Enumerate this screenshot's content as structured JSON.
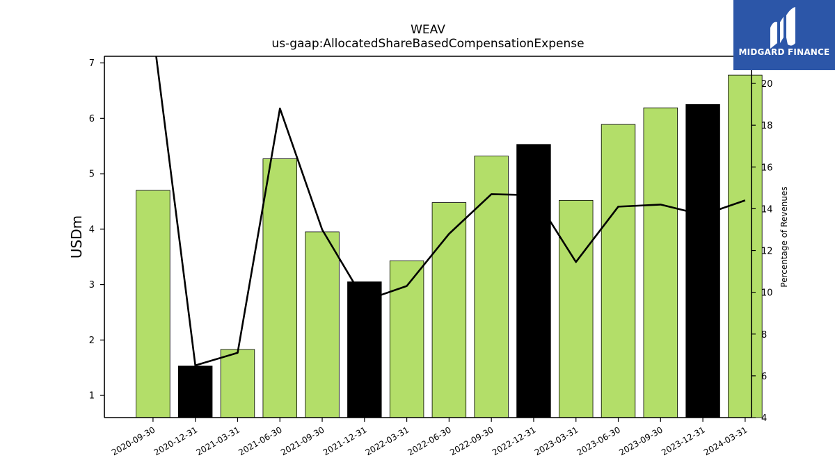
{
  "chart_data": {
    "type": "bar",
    "title": "WEAV",
    "subtitle": "us-gaap:AllocatedShareBasedCompensationExpense",
    "ylabel": "USDm",
    "ylabel_right": "Percentage of Revenues",
    "ylim": [
      0.6,
      7.12
    ],
    "ylim_right": [
      4,
      21.3
    ],
    "yticks": [
      1,
      2,
      3,
      4,
      5,
      6,
      7
    ],
    "yticks_right": [
      4,
      6,
      8,
      10,
      12,
      14,
      16,
      18,
      20
    ],
    "categories": [
      "2020-09-30",
      "2020-12-31",
      "2021-03-31",
      "2021-06-30",
      "2021-09-30",
      "2021-12-31",
      "2022-03-31",
      "2022-06-30",
      "2022-09-30",
      "2022-12-31",
      "2023-03-31",
      "2023-06-30",
      "2023-09-30",
      "2023-12-31",
      "2024-03-31"
    ],
    "series": [
      {
        "values": [
          4.7,
          1.53,
          1.83,
          5.27,
          3.95,
          3.05,
          3.43,
          4.48,
          5.32,
          5.53,
          4.52,
          5.89,
          6.19,
          6.25,
          6.78
        ],
        "colors": [
          "#b3de69",
          "#000000",
          "#b3de69",
          "#b3de69",
          "#b3de69",
          "#000000",
          "#b3de69",
          "#b3de69",
          "#b3de69",
          "#000000",
          "#b3de69",
          "#b3de69",
          "#b3de69",
          "#000000",
          "#b3de69"
        ],
        "axis": "left"
      },
      {
        "type": "line",
        "values": [
          22.5,
          6.5,
          7.1,
          18.8,
          13.0,
          9.6,
          10.3,
          12.8,
          14.7,
          14.65,
          11.45,
          14.1,
          14.2,
          13.7,
          14.4
        ],
        "color": "#000000",
        "axis": "right"
      }
    ],
    "grid": false
  },
  "logo": {
    "text": "MIDGARD FINANCE",
    "color": "#2c56a8"
  }
}
